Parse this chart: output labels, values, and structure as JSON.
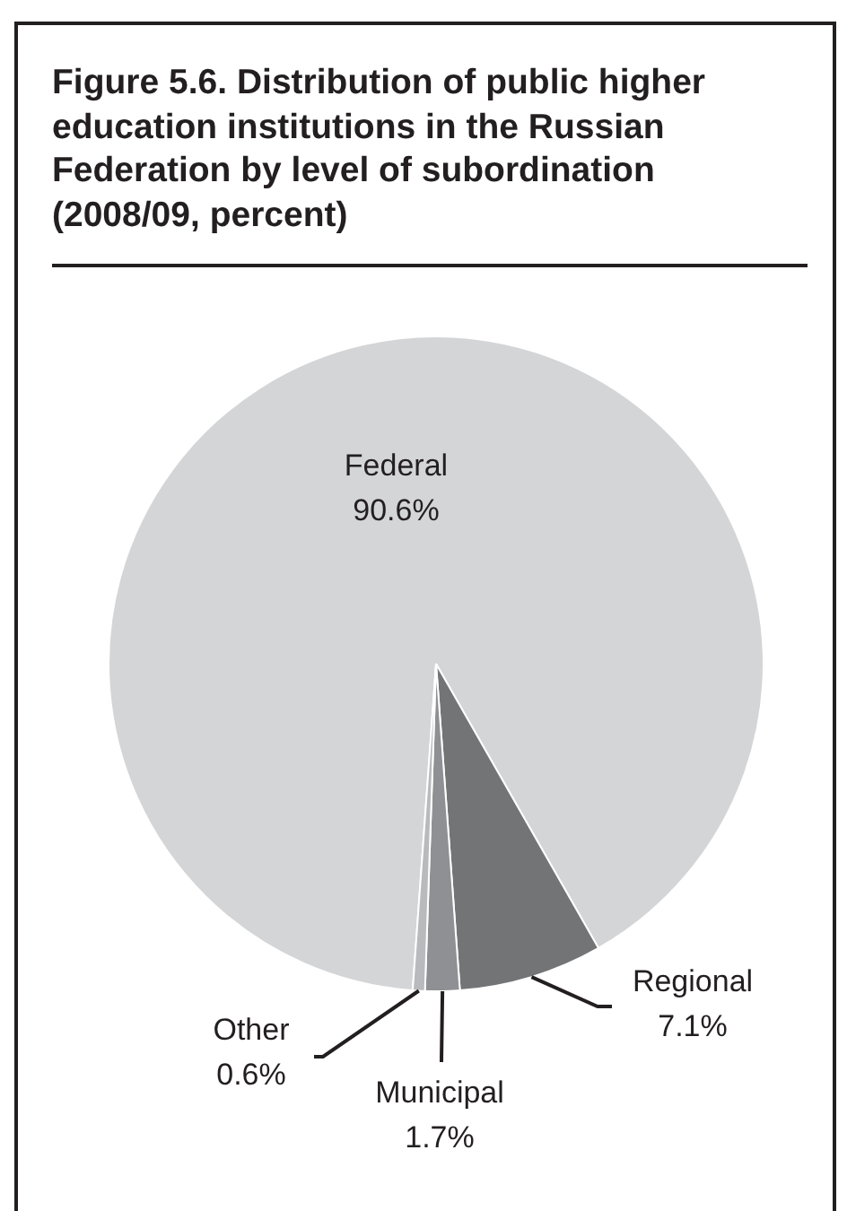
{
  "chart_data": {
    "type": "pie",
    "title": "Figure 5.6. Distribution of public higher education institutions in the Russian Federation by level of subordination (2008/09, percent)",
    "categories": [
      "Federal",
      "Regional",
      "Municipal",
      "Other"
    ],
    "values": [
      90.6,
      7.1,
      1.7,
      0.6
    ],
    "colors": [
      "#d4d5d7",
      "#737476",
      "#8e9093",
      "#b8babd"
    ],
    "value_labels": [
      "90.6%",
      "7.1%",
      "1.7%",
      "0.6%"
    ],
    "legend": false
  }
}
